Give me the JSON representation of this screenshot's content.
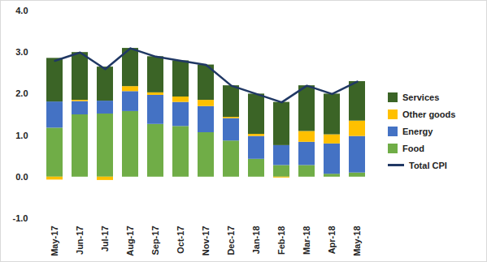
{
  "chart_data": {
    "type": "bar",
    "stacked": true,
    "grid": false,
    "legend": "right",
    "categories": [
      "May-17",
      "Jun-17",
      "Jul-17",
      "Aug-17",
      "Sep-17",
      "Oct-17",
      "Nov-17",
      "Dec-17",
      "Jan-18",
      "Feb-18",
      "Mar-18",
      "Apr-18",
      "May-18"
    ],
    "ylim": [
      -1,
      4
    ],
    "yticks": [
      {
        "value": -1,
        "label": "-1.0"
      },
      {
        "value": 0,
        "label": "0.0"
      },
      {
        "value": 1,
        "label": "1.0"
      },
      {
        "value": 2,
        "label": "2.0"
      },
      {
        "value": 3,
        "label": "3.0"
      },
      {
        "value": 4,
        "label": "4.0"
      }
    ],
    "series": [
      {
        "name": "Food",
        "color": "#70ad47",
        "values": [
          1.18,
          1.5,
          1.52,
          1.58,
          1.27,
          1.22,
          1.07,
          0.87,
          0.43,
          0.28,
          0.28,
          0.07,
          0.1
        ]
      },
      {
        "name": "Energy",
        "color": "#4472c4",
        "values": [
          0.63,
          0.32,
          0.31,
          0.48,
          0.7,
          0.58,
          0.63,
          0.54,
          0.55,
          0.48,
          0.56,
          0.73,
          0.88
        ]
      },
      {
        "name": "Other goods",
        "color": "#ffc000",
        "values": [
          -0.07,
          0.03,
          -0.08,
          0.12,
          0.06,
          0.13,
          0.15,
          0.03,
          0.05,
          -0.02,
          0.26,
          0.22,
          0.37
        ]
      },
      {
        "name": "Services",
        "color": "#3b6426",
        "values": [
          1.05,
          1.15,
          0.82,
          0.92,
          0.87,
          0.87,
          0.85,
          0.76,
          0.97,
          1.04,
          1.1,
          0.98,
          0.95
        ]
      },
      {
        "name": "Total CPI",
        "type": "line",
        "color": "#203864",
        "values": [
          2.8,
          3.0,
          2.6,
          3.1,
          2.9,
          2.8,
          2.7,
          2.2,
          2.0,
          1.8,
          2.2,
          2.0,
          2.3
        ]
      }
    ]
  }
}
